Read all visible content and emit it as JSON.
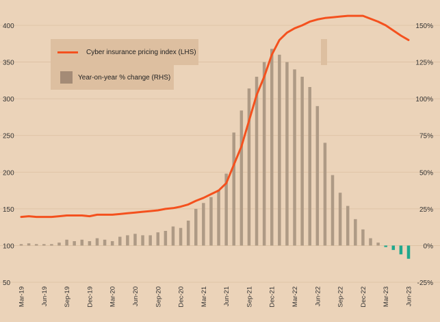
{
  "chart_data": {
    "type": "bar+line",
    "categories": [
      "Mar-19",
      "Apr-19",
      "May-19",
      "Jun-19",
      "Jul-19",
      "Aug-19",
      "Sep-19",
      "Oct-19",
      "Nov-19",
      "Dec-19",
      "Jan-20",
      "Feb-20",
      "Mar-20",
      "Apr-20",
      "May-20",
      "Jun-20",
      "Jul-20",
      "Aug-20",
      "Sep-20",
      "Oct-20",
      "Nov-20",
      "Dec-20",
      "Jan-21",
      "Feb-21",
      "Mar-21",
      "Apr-21",
      "May-21",
      "Jun-21",
      "Jul-21",
      "Aug-21",
      "Sep-21",
      "Oct-21",
      "Nov-21",
      "Dec-21",
      "Jan-22",
      "Feb-22",
      "Mar-22",
      "Apr-22",
      "May-22",
      "Jun-22",
      "Jul-22",
      "Aug-22",
      "Sep-22",
      "Oct-22",
      "Nov-22",
      "Dec-22",
      "Jan-23",
      "Feb-23",
      "Mar-23",
      "Apr-23",
      "May-23",
      "Jun-23"
    ],
    "x_tick_labels": [
      "Mar-19",
      "Jun-19",
      "Sep-19",
      "Dec-19",
      "Mar-20",
      "Jun-20",
      "Sep-20",
      "Dec-20",
      "Mar-21",
      "Jun-21",
      "Sep-21",
      "Dec-21",
      "Mar-22",
      "Jun-22",
      "Sep-22",
      "Dec-22",
      "Mar-23",
      "Jun-23"
    ],
    "series": [
      {
        "name": "Cyber insurance pricing index (LHS)",
        "type": "line",
        "axis": "left",
        "color": "#f4511e",
        "values": [
          139,
          140,
          139,
          139,
          139,
          140,
          141,
          141,
          141,
          140,
          142,
          142,
          142,
          143,
          144,
          145,
          146,
          147,
          148,
          150,
          151,
          153,
          156,
          161,
          165,
          170,
          175,
          185,
          210,
          235,
          270,
          305,
          330,
          360,
          380,
          390,
          396,
          400,
          405,
          408,
          410,
          411,
          412,
          413,
          413,
          413,
          409,
          405,
          400,
          393,
          386,
          380
        ]
      },
      {
        "name": "Year-on-year % change (RHS)",
        "type": "bar",
        "axis": "right",
        "color": "#ae9a85",
        "negative_color": "#1fa88d",
        "values": [
          1,
          1.5,
          1,
          1,
          1,
          2,
          4,
          3,
          4,
          3,
          5,
          4,
          3,
          6,
          7,
          8,
          7,
          7,
          9,
          10,
          13,
          12,
          17,
          25,
          29,
          33,
          38,
          49,
          77,
          92,
          107,
          115,
          125,
          134,
          130,
          125,
          120,
          115,
          108,
          95,
          70,
          48,
          36,
          27,
          18,
          11,
          5,
          2,
          -1,
          -3,
          -6,
          -9
        ]
      }
    ],
    "left_axis": {
      "min": 50,
      "max": 400,
      "ticks": [
        "50",
        "100",
        "150",
        "200",
        "250",
        "300",
        "350",
        "400"
      ]
    },
    "right_axis": {
      "min": -25,
      "max": 150,
      "ticks": [
        "-25%",
        "0%",
        "25%",
        "50%",
        "75%",
        "100%",
        "125%",
        "150%"
      ]
    },
    "grid": "horizontal",
    "legend_placement": "top-left",
    "colors": {
      "background": "#ebd3b9",
      "grid": "#dbbfa1",
      "legend_bg": "#ddbfa0"
    }
  }
}
